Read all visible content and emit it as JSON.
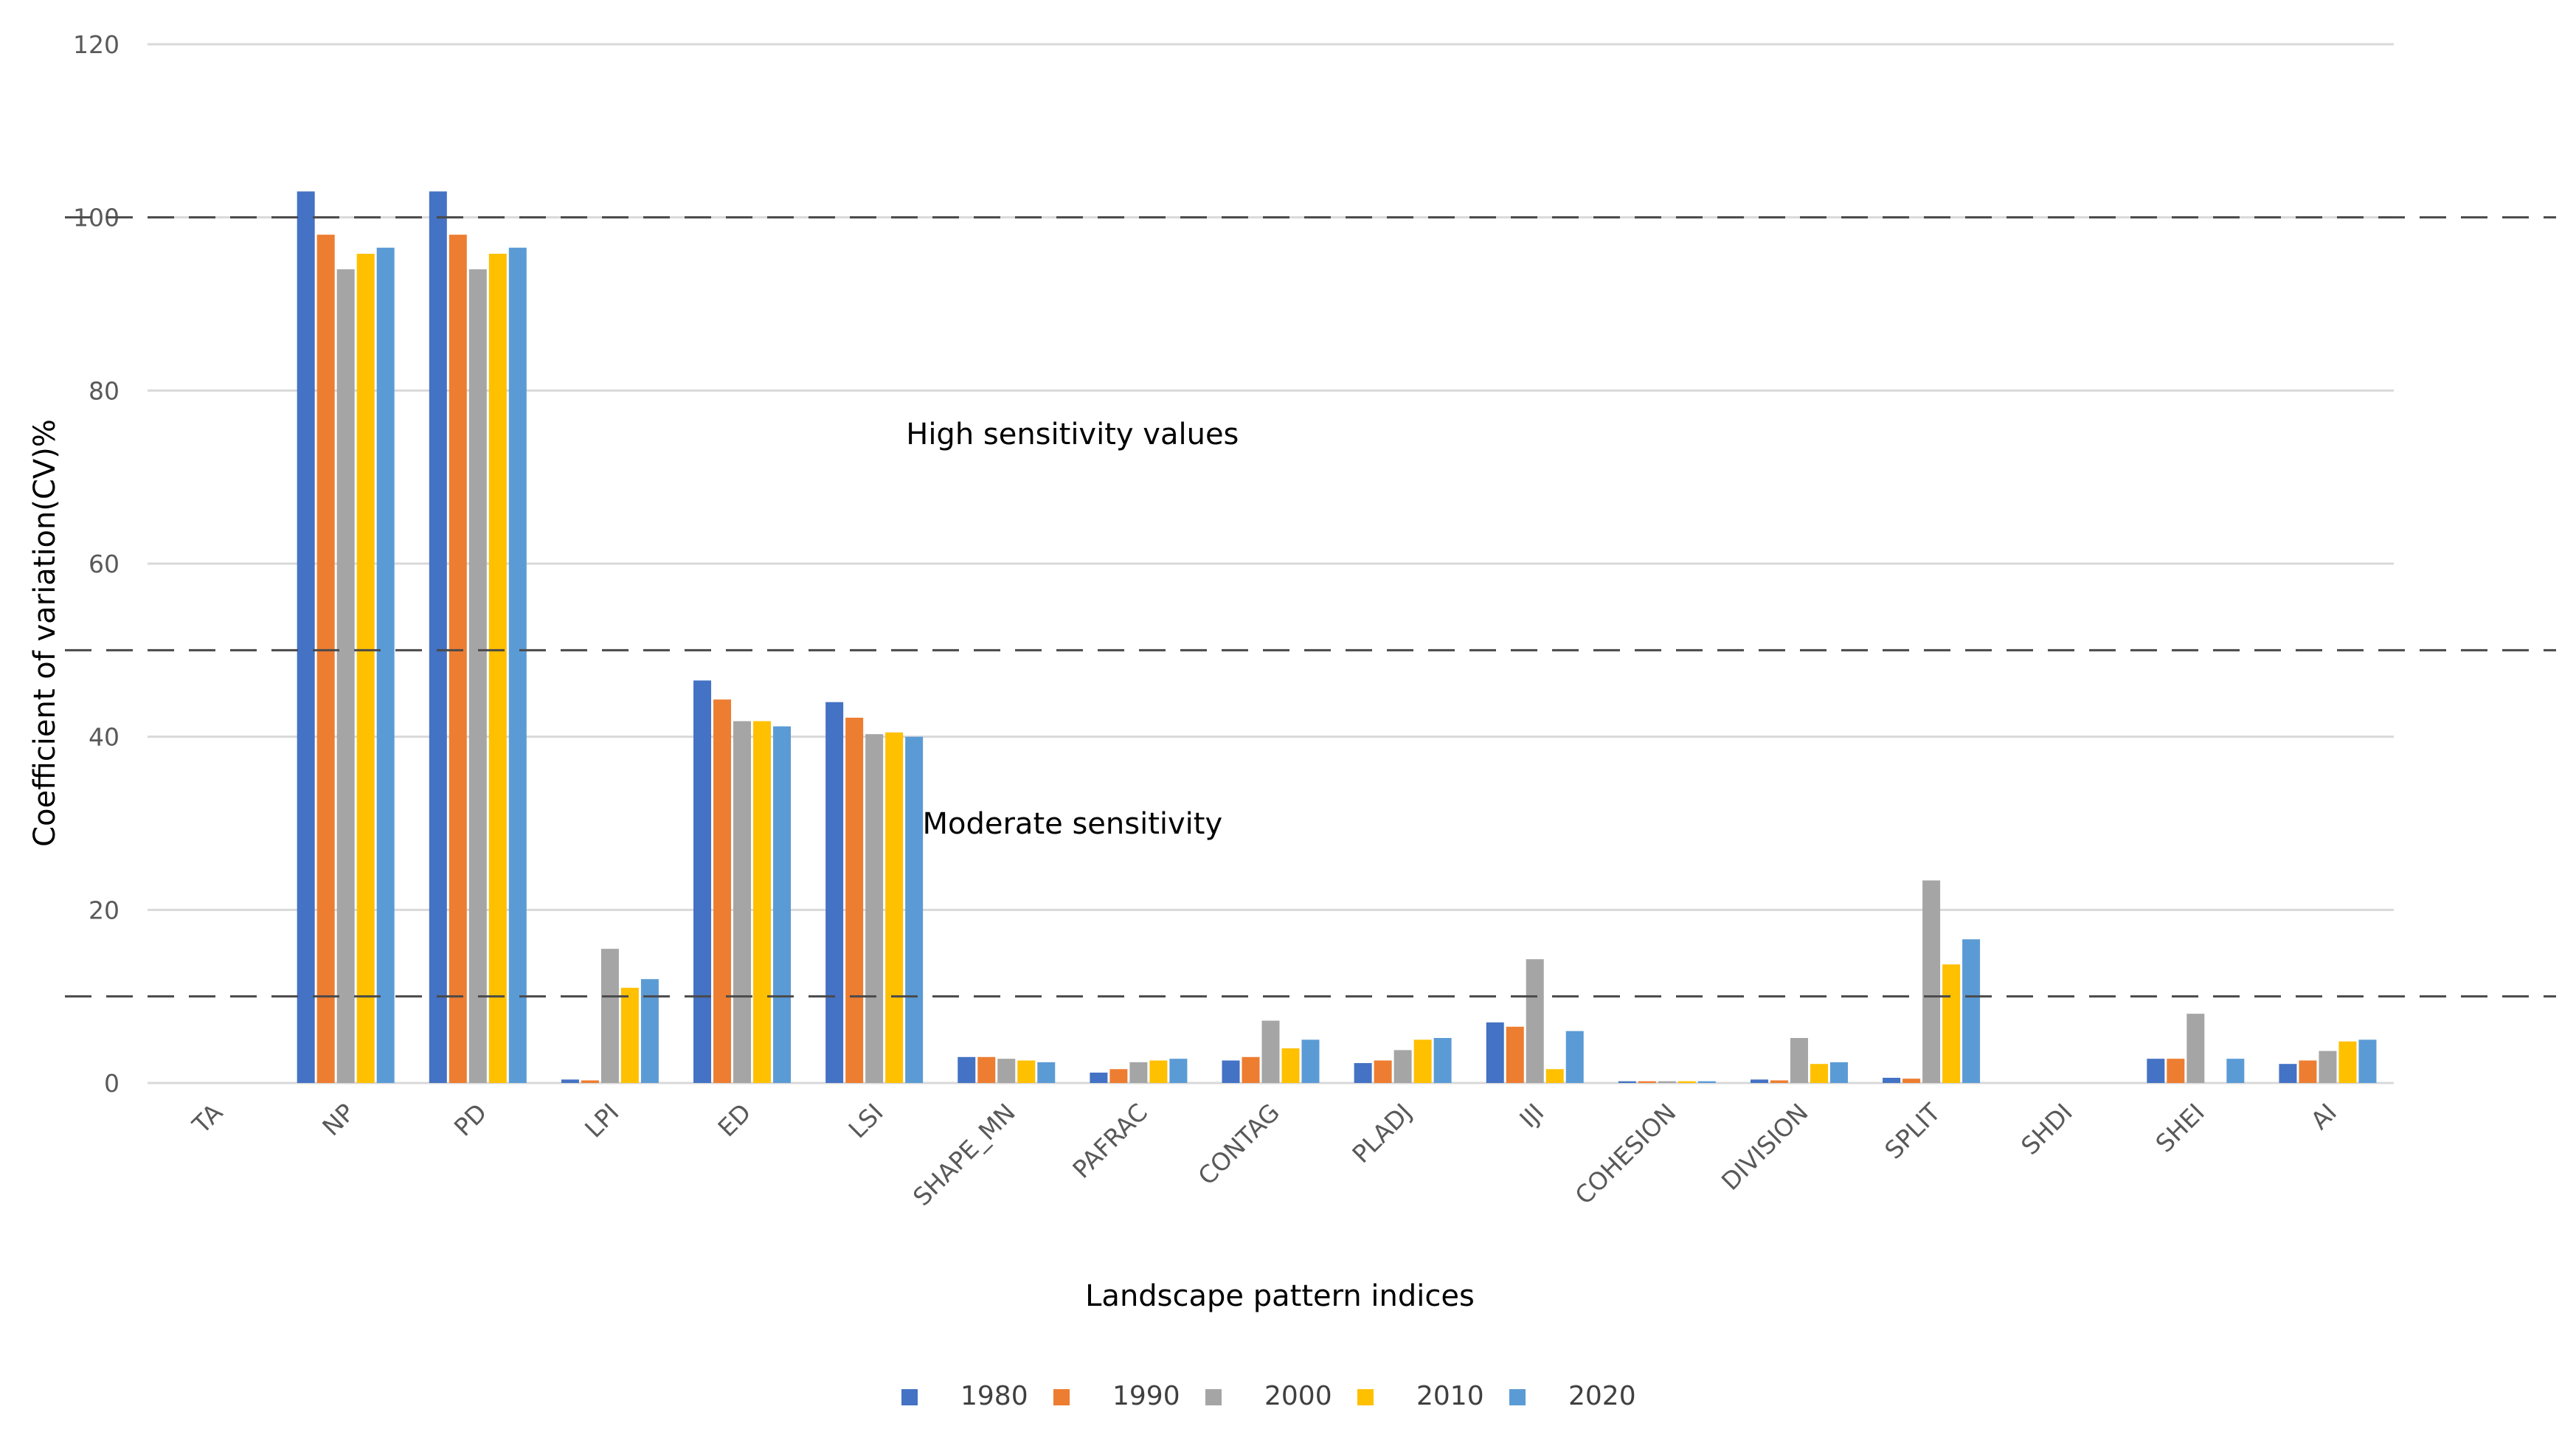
{
  "chart_data": {
    "type": "bar",
    "title": "",
    "xlabel": "Landscape pattern indices",
    "ylabel": "Coefficient of variation(CV)%",
    "ylim": [
      0,
      120
    ],
    "yticks": [
      0,
      20,
      40,
      60,
      80,
      100,
      120
    ],
    "grid": true,
    "legend_position": "bottom",
    "categories": [
      "TA",
      "NP",
      "PD",
      "LPI",
      "ED",
      "LSI",
      "SHAPE_MN",
      "PAFRAC",
      "CONTAG",
      "PLADJ",
      "IJI",
      "COHESION",
      "DIVISION",
      "SPLIT",
      "SHDI",
      "SHEI",
      "AI"
    ],
    "series": [
      {
        "name": "1980",
        "color": "#4472C4",
        "values": [
          0,
          103,
          103,
          0.4,
          46.5,
          44,
          3,
          1.2,
          2.6,
          2.3,
          7,
          0.2,
          0.4,
          0.6,
          0,
          2.8,
          2.2
        ]
      },
      {
        "name": "1990",
        "color": "#ED7D31",
        "values": [
          0,
          98,
          98,
          0.3,
          44.3,
          42.2,
          3,
          1.6,
          3,
          2.6,
          6.5,
          0.2,
          0.3,
          0.5,
          0,
          2.8,
          2.6
        ]
      },
      {
        "name": "2000",
        "color": "#A5A5A5",
        "values": [
          0,
          94,
          94,
          15.5,
          41.8,
          40.3,
          2.8,
          2.4,
          7.2,
          3.8,
          14.3,
          0.2,
          5.2,
          23.4,
          0,
          8,
          3.7
        ]
      },
      {
        "name": "2010",
        "color": "#FFC000",
        "values": [
          0,
          95.8,
          95.8,
          11,
          41.8,
          40.5,
          2.6,
          2.6,
          4,
          5,
          1.6,
          0.2,
          2.2,
          13.7,
          0,
          0,
          4.8
        ]
      },
      {
        "name": "2020",
        "color": "#5B9BD5",
        "values": [
          0,
          96.5,
          96.5,
          12,
          41.2,
          40,
          2.4,
          2.8,
          5,
          5.2,
          6,
          0.2,
          2.4,
          16.6,
          0,
          2.8,
          5
        ]
      }
    ],
    "thresholds": [
      10,
      50,
      100
    ],
    "annotations": [
      {
        "text": "High sensitivity values",
        "y": 75,
        "category_position": 6.5
      },
      {
        "text": "Moderate sensitivity",
        "y": 30,
        "category_position": 6.5
      }
    ]
  }
}
